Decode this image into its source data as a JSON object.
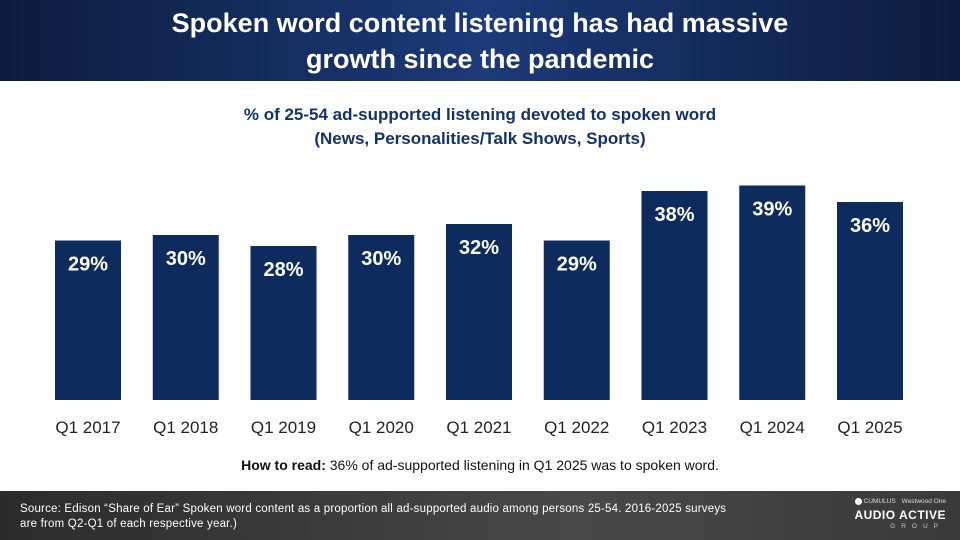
{
  "header": {
    "title": "Spoken word content listening has had massive growth since the pandemic"
  },
  "chart_data": {
    "type": "bar",
    "title": "% of 25-54 ad-supported listening devoted to spoken word",
    "subtitle": "(News, Personalities/Talk Shows, Sports)",
    "categories": [
      "Q1 2017",
      "Q1 2018",
      "Q1 2019",
      "Q1 2020",
      "Q1 2021",
      "Q1 2022",
      "Q1 2023",
      "Q1 2024",
      "Q1 2025"
    ],
    "values": [
      29,
      30,
      28,
      30,
      32,
      29,
      38,
      39,
      36
    ],
    "data_labels": [
      "29%",
      "30%",
      "28%",
      "30%",
      "32%",
      "29%",
      "38%",
      "39%",
      "36%"
    ],
    "bar_color": "#0e2b5e",
    "label_color_inside": "#ffffff",
    "label_color_outside": "#0e2b5e",
    "ylim": [
      0,
      40
    ],
    "grid": false,
    "legend": "none"
  },
  "how_to_read": {
    "prefix": "How to read:",
    "text": "36% of ad-supported listening in Q1 2025 was to spoken word."
  },
  "footer": {
    "source": "Source: Edison “Share of Ear” Spoken word content as a proportion all ad-supported audio among persons 25-54. 2016-2025 surveys are from Q2-Q1 of each respective year.)",
    "logo": {
      "cumulus": "CUMULUS",
      "westwood": "Westwood One",
      "main": "AUDIO ACTIVE",
      "sub": "GROUP"
    }
  }
}
